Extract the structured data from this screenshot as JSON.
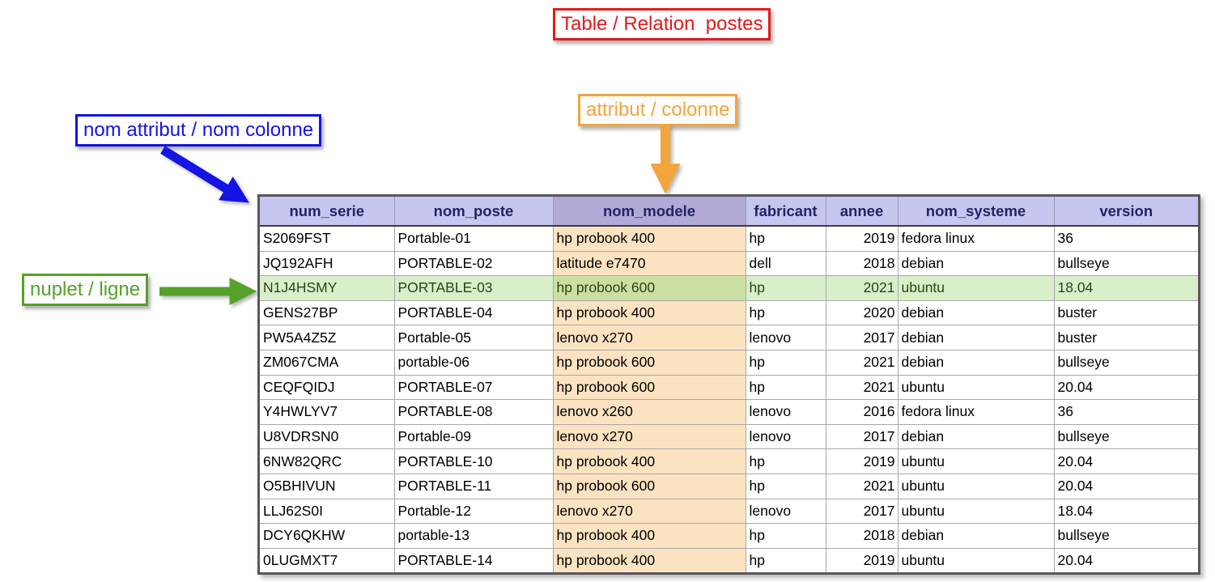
{
  "annotations": {
    "title": {
      "text": "Table / Relation  postes",
      "color": "#e41a1a"
    },
    "column_name": {
      "text": "nom attribut / nom colonne",
      "color": "#1414e4"
    },
    "column": {
      "text": "attribut / colonne",
      "color": "#f2a53c"
    },
    "row": {
      "text": "nuplet / ligne",
      "color": "#55a12a"
    }
  },
  "table": {
    "name": "postes",
    "columns": [
      "num_serie",
      "nom_poste",
      "nom_modele",
      "fabricant",
      "annee",
      "nom_systeme",
      "version"
    ],
    "highlighted_column": "nom_modele",
    "highlighted_row_index": 2,
    "rows": [
      [
        "S2069FST",
        "Portable-01",
        "hp probook 400",
        "hp",
        "2019",
        "fedora linux",
        "36"
      ],
      [
        "JQ192AFH",
        "PORTABLE-02",
        "latitude e7470",
        "dell",
        "2018",
        "debian",
        "bullseye"
      ],
      [
        "N1J4HSMY",
        "PORTABLE-03",
        "hp probook 600",
        "hp",
        "2021",
        "ubuntu",
        "18.04"
      ],
      [
        "GENS27BP",
        "PORTABLE-04",
        "hp probook 400",
        "hp",
        "2020",
        "debian",
        "buster"
      ],
      [
        "PW5A4Z5Z",
        "Portable-05",
        "lenovo x270",
        "lenovo",
        "2017",
        "debian",
        "buster"
      ],
      [
        "ZM067CMA",
        "portable-06",
        "hp probook 600",
        "hp",
        "2021",
        "debian",
        "bullseye"
      ],
      [
        "CEQFQIDJ",
        "PORTABLE-07",
        "hp probook 600",
        "hp",
        "2021",
        "ubuntu",
        "20.04"
      ],
      [
        "Y4HWLYV7",
        "PORTABLE-08",
        "lenovo x260",
        "lenovo",
        "2016",
        "fedora linux",
        "36"
      ],
      [
        "U8VDRSN0",
        "Portable-09",
        "lenovo x270",
        "lenovo",
        "2017",
        "debian",
        "bullseye"
      ],
      [
        "6NW82QRC",
        "PORTABLE-10",
        "hp probook 400",
        "hp",
        "2019",
        "ubuntu",
        "20.04"
      ],
      [
        "O5BHIVUN",
        "PORTABLE-11",
        "hp probook 600",
        "hp",
        "2021",
        "ubuntu",
        "20.04"
      ],
      [
        "LLJ62S0I",
        "Portable-12",
        "lenovo x270",
        "lenovo",
        "2017",
        "ubuntu",
        "18.04"
      ],
      [
        "DCY6QKHW",
        "portable-13",
        "hp probook 400",
        "hp",
        "2018",
        "debian",
        "bullseye"
      ],
      [
        "0LUGMXT7",
        "PORTABLE-14",
        "hp probook 400",
        "hp",
        "2019",
        "ubuntu",
        "20.04"
      ]
    ],
    "colors": {
      "header_bg": "#c7c6f1",
      "header_text": "#232366",
      "header_highlight_bg": "#b1aad7",
      "column_highlight_bg": "#fbe3c2",
      "row_highlight_bg": "#d8efca",
      "intersection_bg": "#cbdfa3",
      "row_text": "#000000",
      "highlight_row_text": "#2c4312"
    }
  }
}
